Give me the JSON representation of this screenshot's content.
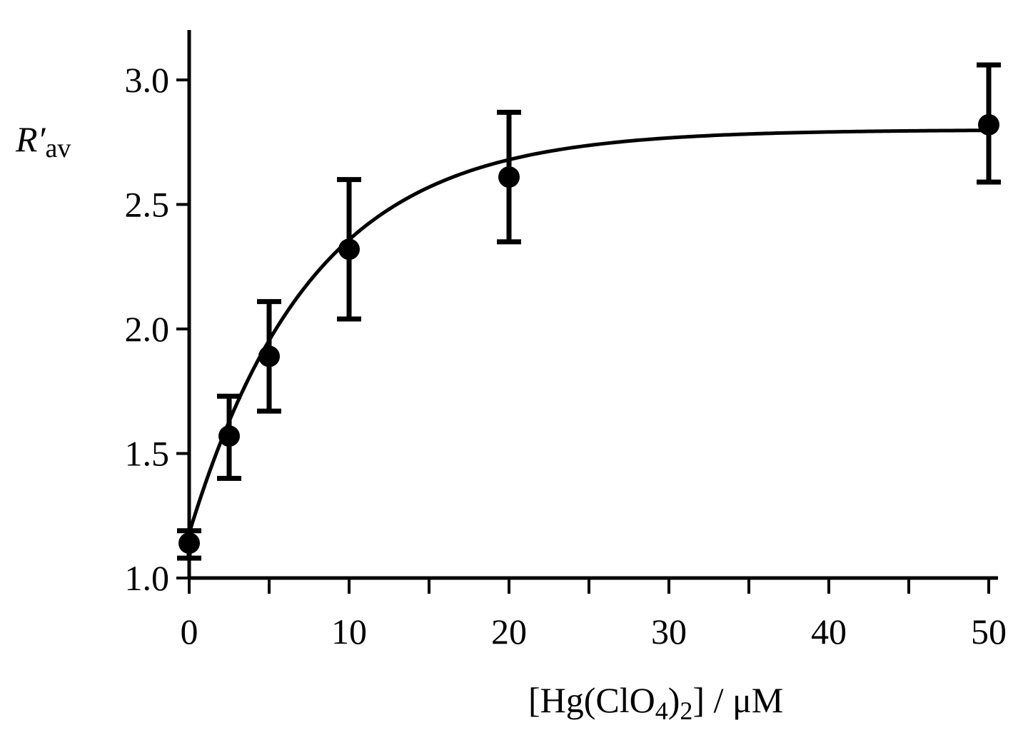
{
  "chart_data": {
    "type": "scatter",
    "title": "",
    "xlabel": "[Hg(ClO4)2] / μM",
    "xlabel_parts": {
      "open": "[Hg(ClO",
      "sub1": "4",
      "mid": ")",
      "sub2": "2",
      "close": "] / μM"
    },
    "ylabel": "R′av",
    "ylabel_parts": {
      "main": "R′",
      "sub": "av"
    },
    "xlim": [
      0,
      50
    ],
    "ylim": [
      1.0,
      3.0
    ],
    "x_ticks": [
      0,
      10,
      20,
      30,
      40,
      50
    ],
    "x_tick_labels": [
      "0",
      "10",
      "20",
      "30",
      "40",
      "50"
    ],
    "x_minor_ticks": [
      5,
      15,
      25,
      35,
      45
    ],
    "y_ticks": [
      1.0,
      1.5,
      2.0,
      2.5,
      3.0
    ],
    "y_tick_labels": [
      "1.0",
      "1.5",
      "2.0",
      "2.5",
      "3.0"
    ],
    "grid": false,
    "series": [
      {
        "x": [
          0,
          2.5,
          5,
          10,
          20,
          50
        ],
        "y": [
          1.14,
          1.57,
          1.89,
          2.32,
          2.61,
          2.82
        ],
        "error_low": [
          1.08,
          1.4,
          1.67,
          2.04,
          2.35,
          2.59
        ],
        "error_high": [
          1.19,
          1.73,
          2.11,
          2.6,
          2.87,
          3.06
        ]
      }
    ],
    "fit_curve": {
      "model": "exponential saturation",
      "x_range": [
        0,
        50
      ],
      "y0": 1.18,
      "ymax": 2.8,
      "k": 0.13
    }
  }
}
